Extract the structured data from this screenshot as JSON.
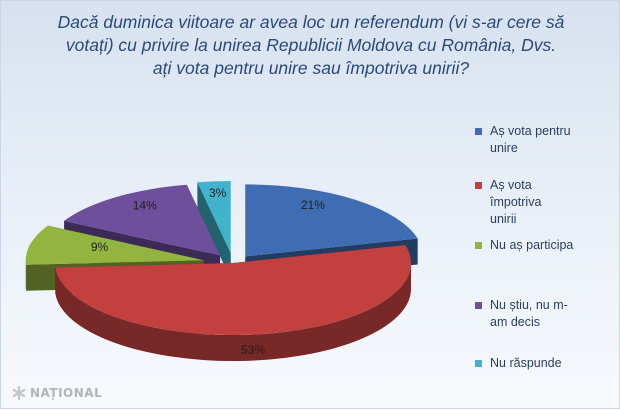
{
  "chart_data": {
    "type": "pie",
    "title": [
      "Dacă duminica viitoare ar avea loc un referendum (vi s-ar cere să",
      "votați) cu privire la unirea Republicii Moldova cu România, Dvs.",
      "ați vota pentru unire  sau împotriva unirii?"
    ],
    "legend_position": "right",
    "slices": [
      {
        "legend": "Aș vota pentru unire",
        "value": 21,
        "label": "21%",
        "color": "#3f6db3"
      },
      {
        "legend": "Aș vota împotriva unirii",
        "value": 53,
        "label": "53%",
        "color": "#c2403e"
      },
      {
        "legend": "Nu aș participa",
        "value": 9,
        "label": "9%",
        "color": "#93b43f"
      },
      {
        "legend": "Nu știu, nu m-am decis",
        "value": 14,
        "label": "14%",
        "color": "#6d4f9c"
      },
      {
        "legend": "Nu răspunde",
        "value": 3,
        "label": "3%",
        "color": "#3fb4cc"
      }
    ]
  },
  "legend": {
    "items": [
      {
        "lines": [
          "Aș vota pentru",
          "unire"
        ],
        "color": "#3f6db3"
      },
      {
        "lines": [
          "Aș vota",
          "împotriva",
          "unirii"
        ],
        "color": "#c2403e"
      },
      {
        "lines": [
          "Nu aș participa"
        ],
        "color": "#93b43f"
      },
      {
        "lines": [
          "Nu știu, nu m-",
          "am decis"
        ],
        "color": "#6d4f9c"
      },
      {
        "lines": [
          "Nu răspunde"
        ],
        "color": "#3fb4cc"
      }
    ]
  },
  "logo": {
    "text": "NAȚIONAL",
    "icon": "asterisk-logo-icon",
    "color": "#b3b3b3"
  }
}
